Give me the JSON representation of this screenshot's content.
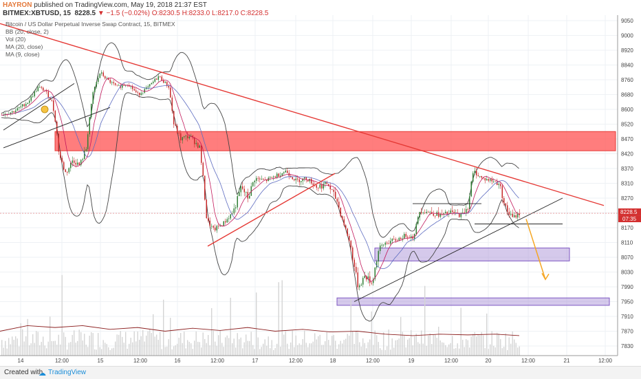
{
  "header": {
    "author": "HAYRON",
    "published_text": "published on TradingView.com, May 19, 2018 21:37 EST",
    "symbol_line": {
      "symbol": "BITMEX:XBTUSD, 15",
      "price": "8228.5",
      "change": "▼ −1.5 (−0.02%)",
      "ohlc": "O:8230.5 H:8233.0 L:8217.0 C:8228.5"
    }
  },
  "indicators": [
    "Bitcoin / US Dollar Perpetual Inverse Swap Contract, 15, BITMEX",
    "BB (20, close, 2)",
    "Vol (20)",
    "MA (20, close)",
    "MA (9, close)"
  ],
  "footer": {
    "created_with": "Created with",
    "brand": "TradingView"
  },
  "chart_data": {
    "type": "candlestick",
    "y_ticks": [
      7830,
      7870,
      7910,
      7950,
      7990,
      8030,
      8070,
      8110,
      8170,
      8230,
      8270,
      8310,
      8370,
      8420,
      8470,
      8520,
      8600,
      8680,
      8760,
      8840,
      8920,
      9000,
      9050
    ],
    "x_ticks": [
      "14",
      "12:00",
      "15",
      "12:00",
      "16",
      "12:00",
      "17",
      "12:00",
      "18",
      "12:00",
      "19",
      "12:00",
      "20",
      "12:00",
      "21",
      "12:00"
    ],
    "last_price": "8228.5",
    "countdown": "07:35",
    "price_path": [
      [
        0,
        8570
      ],
      [
        20,
        8590
      ],
      [
        40,
        8640
      ],
      [
        55,
        8720
      ],
      [
        65,
        8700
      ],
      [
        75,
        8640
      ],
      [
        85,
        8420
      ],
      [
        95,
        8350
      ],
      [
        105,
        8400
      ],
      [
        115,
        8380
      ],
      [
        125,
        8440
      ],
      [
        135,
        8700
      ],
      [
        145,
        8800
      ],
      [
        155,
        8760
      ],
      [
        170,
        8720
      ],
      [
        185,
        8740
      ],
      [
        200,
        8680
      ],
      [
        215,
        8720
      ],
      [
        230,
        8780
      ],
      [
        245,
        8720
      ],
      [
        252,
        8520
      ],
      [
        262,
        8470
      ],
      [
        275,
        8480
      ],
      [
        290,
        8440
      ],
      [
        300,
        8200
      ],
      [
        310,
        8160
      ],
      [
        325,
        8190
      ],
      [
        340,
        8240
      ],
      [
        350,
        8300
      ],
      [
        360,
        8270
      ],
      [
        370,
        8330
      ],
      [
        385,
        8320
      ],
      [
        400,
        8340
      ],
      [
        415,
        8360
      ],
      [
        430,
        8320
      ],
      [
        445,
        8330
      ],
      [
        460,
        8300
      ],
      [
        475,
        8310
      ],
      [
        490,
        8260
      ],
      [
        500,
        8180
      ],
      [
        510,
        8090
      ],
      [
        520,
        7990
      ],
      [
        530,
        8020
      ],
      [
        540,
        8000
      ],
      [
        550,
        8090
      ],
      [
        560,
        8110
      ],
      [
        575,
        8120
      ],
      [
        590,
        8140
      ],
      [
        600,
        8130
      ],
      [
        610,
        8240
      ],
      [
        625,
        8230
      ],
      [
        640,
        8220
      ],
      [
        655,
        8230
      ],
      [
        670,
        8220
      ],
      [
        680,
        8250
      ],
      [
        688,
        8360
      ],
      [
        700,
        8330
      ],
      [
        715,
        8320
      ],
      [
        725,
        8310
      ],
      [
        735,
        8240
      ],
      [
        745,
        8210
      ],
      [
        755,
        8228.5
      ]
    ],
    "volume_path": [
      [
        0,
        7870
      ],
      [
        40,
        7885
      ],
      [
        80,
        7880
      ],
      [
        120,
        7885
      ],
      [
        160,
        7875
      ],
      [
        200,
        7880
      ],
      [
        240,
        7870
      ],
      [
        280,
        7878
      ],
      [
        320,
        7872
      ],
      [
        360,
        7880
      ],
      [
        400,
        7870
      ],
      [
        440,
        7875
      ],
      [
        480,
        7868
      ],
      [
        520,
        7870
      ],
      [
        560,
        7862
      ],
      [
        600,
        7858
      ],
      [
        640,
        7862
      ],
      [
        680,
        7860
      ],
      [
        720,
        7862
      ],
      [
        755,
        7858
      ]
    ],
    "bands": [
      {
        "kind": "resistance-zone",
        "color": "#ff5252",
        "x": [
          80,
          895
        ],
        "y": [
          8430,
          8495
        ]
      },
      {
        "kind": "support-zone",
        "color": "#b39ddb",
        "x": [
          545,
          828
        ],
        "y": [
          8060,
          8095
        ]
      },
      {
        "kind": "support-zone",
        "color": "#b39ddb",
        "x": [
          490,
          886
        ],
        "y": [
          7940,
          7960
        ]
      }
    ],
    "trendlines": [
      {
        "color": "#e53935",
        "from": [
          0,
          9040
        ],
        "to": [
          878,
          8250
        ]
      },
      {
        "color": "#e53935",
        "from": [
          302,
          8100
        ],
        "to": [
          487,
          8350
        ]
      },
      {
        "color": "#222222",
        "from": [
          515,
          7950
        ],
        "to": [
          818,
          8270
        ]
      },
      {
        "color": "#222222",
        "from": [
          5,
          8500
        ],
        "to": [
          108,
          8740
        ]
      },
      {
        "color": "#222222",
        "from": [
          5,
          8440
        ],
        "to": [
          160,
          8610
        ]
      },
      {
        "color": "#222222",
        "from": [
          600,
          8255
        ],
        "to": [
          700,
          8255
        ]
      },
      {
        "color": "#222222",
        "from": [
          690,
          8185
        ],
        "to": [
          818,
          8185
        ]
      }
    ],
    "projection_arrow": {
      "color": "#f5a623",
      "from": [
        765,
        8205
      ],
      "to": [
        793,
        8010
      ]
    }
  }
}
